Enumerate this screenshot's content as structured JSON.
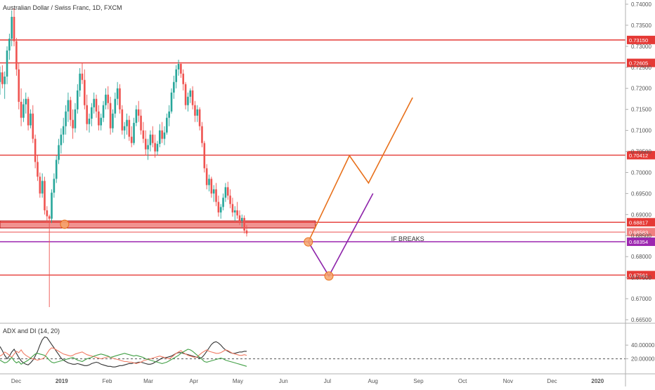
{
  "chart_data": [
    {
      "type": "candlestick",
      "title": "Australian Dollar / Swiss Franc, 1D, FXCM",
      "ylim": [
        0.6645,
        0.741
      ],
      "yticks": [
        "0.74000",
        "0.73500",
        "0.73000",
        "0.72500",
        "0.72000",
        "0.71500",
        "0.71000",
        "0.70500",
        "0.70000",
        "0.69500",
        "0.69000",
        "0.68500",
        "0.68000",
        "0.67500",
        "0.67000",
        "0.66500"
      ],
      "xtick_labels": [
        "Dec",
        "2019",
        "Feb",
        "Mar",
        "Apr",
        "May",
        "Jun",
        "Jul",
        "Aug",
        "Sep",
        "Oct",
        "Nov",
        "Dec",
        "2020"
      ],
      "xrange": [
        "2018-11-20",
        "2020-01-20"
      ],
      "xtick_dates": [
        "2018-12-01",
        "2019-01-01",
        "2019-02-01",
        "2019-03-01",
        "2019-04-01",
        "2019-05-01",
        "2019-06-01",
        "2019-07-01",
        "2019-08-01",
        "2019-09-01",
        "2019-10-01",
        "2019-11-01",
        "2019-12-01",
        "2020-01-01"
      ],
      "candles_start": "2018-11-20",
      "candles": [
        [
          0.7215,
          0.7252,
          0.7185,
          0.7238
        ],
        [
          0.7238,
          0.7255,
          0.72,
          0.721
        ],
        [
          0.721,
          0.724,
          0.7175,
          0.7228
        ],
        [
          0.7228,
          0.73,
          0.721,
          0.729
        ],
        [
          0.729,
          0.733,
          0.7268,
          0.7318
        ],
        [
          0.7318,
          0.7385,
          0.73,
          0.737
        ],
        [
          0.737,
          0.739,
          0.73,
          0.7312
        ],
        [
          0.7312,
          0.732,
          0.723,
          0.7245
        ],
        [
          0.7245,
          0.726,
          0.715,
          0.7168
        ],
        [
          0.7168,
          0.72,
          0.711,
          0.713
        ],
        [
          0.713,
          0.7175,
          0.712,
          0.7162
        ],
        [
          0.7162,
          0.719,
          0.714,
          0.7175
        ],
        [
          0.7175,
          0.718,
          0.71,
          0.7112
        ],
        [
          0.7112,
          0.715,
          0.7105,
          0.714
        ],
        [
          0.714,
          0.716,
          0.707,
          0.708
        ],
        [
          0.708,
          0.709,
          0.701,
          0.7025
        ],
        [
          0.7025,
          0.704,
          0.698,
          0.699
        ],
        [
          0.699,
          0.7,
          0.694,
          0.695
        ],
        [
          0.695,
          0.6998,
          0.694,
          0.698
        ],
        [
          0.698,
          0.699,
          0.69,
          0.691
        ],
        [
          0.691,
          0.692,
          0.688,
          0.6896
        ],
        [
          0.6896,
          0.69,
          0.668,
          0.689
        ],
        [
          0.689,
          0.696,
          0.688,
          0.6952
        ],
        [
          0.6952,
          0.6998,
          0.694,
          0.6985
        ],
        [
          0.6985,
          0.704,
          0.6975,
          0.703
        ],
        [
          0.703,
          0.708,
          0.702,
          0.7065
        ],
        [
          0.7065,
          0.7105,
          0.7045,
          0.709
        ],
        [
          0.709,
          0.713,
          0.707,
          0.711
        ],
        [
          0.711,
          0.716,
          0.709,
          0.7145
        ],
        [
          0.7145,
          0.719,
          0.712,
          0.7172
        ],
        [
          0.7172,
          0.718,
          0.711,
          0.7125
        ],
        [
          0.7125,
          0.715,
          0.708,
          0.7105
        ],
        [
          0.7105,
          0.7165,
          0.7095,
          0.715
        ],
        [
          0.715,
          0.721,
          0.714,
          0.7195
        ],
        [
          0.7195,
          0.7248,
          0.718,
          0.7235
        ],
        [
          0.7235,
          0.726,
          0.721,
          0.722
        ],
        [
          0.722,
          0.7245,
          0.715,
          0.716
        ],
        [
          0.716,
          0.7185,
          0.71,
          0.7115
        ],
        [
          0.7115,
          0.714,
          0.7095,
          0.7128
        ],
        [
          0.7128,
          0.7165,
          0.711,
          0.7155
        ],
        [
          0.7155,
          0.719,
          0.714,
          0.7175
        ],
        [
          0.7175,
          0.7185,
          0.713,
          0.7145
        ],
        [
          0.7145,
          0.716,
          0.71,
          0.7112
        ],
        [
          0.7112,
          0.714,
          0.71,
          0.713
        ],
        [
          0.713,
          0.717,
          0.712,
          0.716
        ],
        [
          0.716,
          0.72,
          0.715,
          0.7185
        ],
        [
          0.7185,
          0.7205,
          0.715,
          0.7165
        ],
        [
          0.7165,
          0.718,
          0.709,
          0.7105
        ],
        [
          0.7105,
          0.715,
          0.7095,
          0.714
        ],
        [
          0.714,
          0.719,
          0.713,
          0.7175
        ],
        [
          0.7175,
          0.7215,
          0.716,
          0.72
        ],
        [
          0.72,
          0.721,
          0.714,
          0.715
        ],
        [
          0.715,
          0.716,
          0.709,
          0.71
        ],
        [
          0.71,
          0.712,
          0.708,
          0.711
        ],
        [
          0.711,
          0.714,
          0.709,
          0.7125
        ],
        [
          0.7125,
          0.7135,
          0.7075,
          0.7085
        ],
        [
          0.7085,
          0.711,
          0.706,
          0.707
        ],
        [
          0.707,
          0.713,
          0.7065,
          0.7118
        ],
        [
          0.7118,
          0.716,
          0.711,
          0.715
        ],
        [
          0.715,
          0.717,
          0.712,
          0.7135
        ],
        [
          0.7135,
          0.715,
          0.709,
          0.71
        ],
        [
          0.71,
          0.712,
          0.707,
          0.708
        ],
        [
          0.708,
          0.71,
          0.704,
          0.7055
        ],
        [
          0.7055,
          0.708,
          0.703,
          0.7065
        ],
        [
          0.7065,
          0.71,
          0.705,
          0.709
        ],
        [
          0.709,
          0.711,
          0.706,
          0.707
        ],
        [
          0.707,
          0.709,
          0.7035,
          0.705
        ],
        [
          0.705,
          0.7075,
          0.704,
          0.7068
        ],
        [
          0.7068,
          0.7115,
          0.706,
          0.71
        ],
        [
          0.71,
          0.712,
          0.707,
          0.708
        ],
        [
          0.708,
          0.711,
          0.7065,
          0.7095
        ],
        [
          0.7095,
          0.714,
          0.709,
          0.713
        ],
        [
          0.713,
          0.716,
          0.711,
          0.7145
        ],
        [
          0.7145,
          0.72,
          0.714,
          0.719
        ],
        [
          0.719,
          0.723,
          0.7175,
          0.7215
        ],
        [
          0.7215,
          0.7255,
          0.72,
          0.7245
        ],
        [
          0.7245,
          0.7268,
          0.723,
          0.7258
        ],
        [
          0.7258,
          0.7262,
          0.7225,
          0.7235
        ],
        [
          0.7235,
          0.7245,
          0.7195,
          0.721
        ],
        [
          0.721,
          0.7215,
          0.715,
          0.716
        ],
        [
          0.716,
          0.719,
          0.7145,
          0.718
        ],
        [
          0.718,
          0.72,
          0.7165,
          0.7195
        ],
        [
          0.7195,
          0.7205,
          0.715,
          0.716
        ],
        [
          0.716,
          0.717,
          0.712,
          0.7135
        ],
        [
          0.7135,
          0.716,
          0.712,
          0.715
        ],
        [
          0.715,
          0.7155,
          0.71,
          0.711
        ],
        [
          0.711,
          0.712,
          0.706,
          0.707
        ],
        [
          0.707,
          0.7075,
          0.7,
          0.701
        ],
        [
          0.701,
          0.702,
          0.696,
          0.697
        ],
        [
          0.697,
          0.6995,
          0.6955,
          0.6985
        ],
        [
          0.6985,
          0.699,
          0.694,
          0.695
        ],
        [
          0.695,
          0.697,
          0.693,
          0.696
        ],
        [
          0.696,
          0.6975,
          0.692,
          0.693
        ],
        [
          0.693,
          0.6945,
          0.6895,
          0.6905
        ],
        [
          0.6905,
          0.6925,
          0.689,
          0.6918
        ],
        [
          0.6918,
          0.695,
          0.691,
          0.694
        ],
        [
          0.694,
          0.6975,
          0.693,
          0.6965
        ],
        [
          0.6965,
          0.6978,
          0.6935,
          0.6945
        ],
        [
          0.6945,
          0.696,
          0.6915,
          0.6925
        ],
        [
          0.6925,
          0.694,
          0.6895,
          0.6905
        ],
        [
          0.6905,
          0.692,
          0.6885,
          0.691
        ],
        [
          0.691,
          0.693,
          0.689,
          0.6898
        ],
        [
          0.6898,
          0.691,
          0.6875,
          0.6885
        ],
        [
          0.6885,
          0.69,
          0.687,
          0.6892
        ],
        [
          0.6892,
          0.6898,
          0.6855,
          0.6862
        ],
        [
          0.6862,
          0.6875,
          0.6848,
          0.6855
        ]
      ],
      "levels": [
        {
          "label": "0.73150",
          "value": 0.7315,
          "color": "#e53935"
        },
        {
          "label": "0.72605",
          "value": 0.72605,
          "color": "#e53935"
        },
        {
          "label": "0.70412",
          "value": 0.70412,
          "color": "#e53935"
        },
        {
          "label": "0.68817",
          "value": 0.68817,
          "color": "#e53935"
        },
        {
          "label": "0.68583",
          "value": 0.68583,
          "color": "#f08080"
        },
        {
          "label": "0.68354",
          "value": 0.68354,
          "color": "#9c27b0"
        },
        {
          "label": "0.67561",
          "value": 0.67561,
          "color": "#e53935"
        }
      ],
      "support_zone": {
        "from": "2018-11-20",
        "to": "2019-06-18",
        "low": 0.6868,
        "high": 0.6885,
        "color": "#e53935"
      },
      "markers": [
        {
          "date": "2019-01-03",
          "value": 0.6877,
          "color": "#f6a36a"
        },
        {
          "date": "2019-06-18",
          "value": 0.6835,
          "color": "#f6a36a"
        },
        {
          "date": "2019-07-02",
          "value": 0.6754,
          "color": "#f6a36a"
        }
      ],
      "projections": [
        {
          "color": "#e8711c",
          "points": [
            [
              "2019-06-18",
              0.6835
            ],
            [
              "2019-07-16",
              0.704
            ],
            [
              "2019-07-29",
              0.6975
            ],
            [
              "2019-08-28",
              0.7178
            ]
          ]
        },
        {
          "color": "#8e24aa",
          "points": [
            [
              "2019-06-18",
              0.6835
            ],
            [
              "2019-07-02",
              0.6754
            ],
            [
              "2019-08-01",
              0.695
            ]
          ]
        }
      ],
      "annotation": {
        "text": "IF BREAKS",
        "date": "2019-07-31",
        "value": 0.6837
      },
      "colors": {
        "up": "#26a69a",
        "down": "#ef5350"
      }
    },
    {
      "type": "line",
      "title": "ADX and DI (14, 20)",
      "ylim": [
        0,
        70
      ],
      "yticks": [
        "40.00000",
        "20.00000"
      ],
      "threshold": {
        "value": 20,
        "label": "20.00000"
      },
      "series": [
        {
          "color": "#333333",
          "values": [
            38,
            32,
            25,
            20,
            24,
            30,
            34,
            28,
            22,
            17,
            14,
            12,
            11,
            14,
            18,
            24,
            31,
            40,
            48,
            52,
            51,
            46,
            41,
            36,
            31,
            26,
            21,
            18,
            16,
            14,
            13,
            12,
            12,
            13,
            12,
            11,
            10,
            10,
            11,
            13,
            14,
            15,
            14,
            12,
            11,
            10,
            9,
            9,
            8,
            8,
            9,
            10,
            10,
            11,
            12,
            13,
            13,
            14,
            14,
            15,
            15,
            14,
            13,
            12,
            12,
            13,
            15,
            17,
            19,
            21,
            22,
            22,
            23,
            24,
            26,
            28,
            29,
            29,
            28,
            27,
            26,
            25,
            24,
            23,
            22,
            21,
            22,
            26,
            31,
            36,
            41,
            44,
            45,
            43,
            40,
            36,
            33,
            31,
            29,
            28,
            28,
            29,
            30,
            30,
            31,
            31
          ]
        },
        {
          "color": "#f07c65",
          "values": [
            24,
            26,
            30,
            28,
            25,
            22,
            27,
            31,
            29,
            33,
            28,
            25,
            23,
            21,
            20,
            19,
            18,
            19,
            20,
            22,
            28,
            33,
            36,
            35,
            33,
            31,
            29,
            27,
            26,
            25,
            24,
            25,
            27,
            28,
            29,
            30,
            28,
            26,
            25,
            24,
            23,
            22,
            21,
            20,
            21,
            22,
            23,
            22,
            21,
            20,
            19,
            18,
            17,
            16,
            16,
            15,
            15,
            14,
            13,
            14,
            15,
            17,
            18,
            19,
            20,
            21,
            22,
            23,
            24,
            23,
            22,
            21,
            20,
            22,
            25,
            28,
            30,
            32,
            29,
            27,
            25,
            24,
            23,
            22,
            23,
            26,
            29,
            31,
            33,
            31,
            30,
            29,
            28,
            28,
            29,
            31,
            33,
            32,
            30,
            28,
            27,
            26,
            25,
            25,
            26,
            25
          ]
        },
        {
          "color": "#43a047",
          "values": [
            18,
            16,
            14,
            15,
            18,
            22,
            17,
            14,
            16,
            12,
            14,
            16,
            18,
            21,
            24,
            27,
            28,
            27,
            26,
            25,
            22,
            18,
            15,
            14,
            15,
            16,
            17,
            18,
            19,
            20,
            21,
            22,
            20,
            18,
            17,
            16,
            18,
            20,
            21,
            22,
            24,
            25,
            26,
            27,
            26,
            25,
            24,
            22,
            23,
            24,
            25,
            26,
            27,
            28,
            27,
            26,
            25,
            24,
            25,
            24,
            23,
            22,
            20,
            19,
            18,
            17,
            16,
            15,
            14,
            13,
            14,
            15,
            17,
            19,
            21,
            23,
            25,
            28,
            30,
            32,
            34,
            33,
            31,
            28,
            25,
            22,
            19,
            16,
            15,
            16,
            17,
            18,
            19,
            20,
            21,
            20,
            18,
            17,
            16,
            15,
            14,
            13,
            12,
            11,
            10,
            9
          ]
        }
      ]
    }
  ]
}
